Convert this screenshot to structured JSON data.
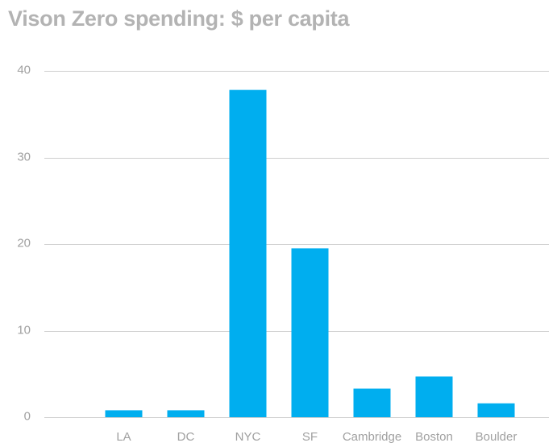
{
  "chart_data": {
    "type": "bar",
    "title": "Vison Zero spending: $ per capita",
    "xlabel": "",
    "ylabel": "",
    "categories": [
      "LA",
      "DC",
      "NYC",
      "SF",
      "Cambridge",
      "Boston",
      "Boulder"
    ],
    "values": [
      0.8,
      0.8,
      37.8,
      19.5,
      3.3,
      4.7,
      1.6
    ],
    "ylim": [
      0,
      40
    ],
    "yticks": [
      0,
      10,
      20,
      30,
      40
    ],
    "grid": true,
    "legend": "none",
    "colors": {
      "bar": "#00aeef",
      "title": "#b3b3b3",
      "tick": "#a0a0a0",
      "grid": "#cfcfcf"
    }
  }
}
